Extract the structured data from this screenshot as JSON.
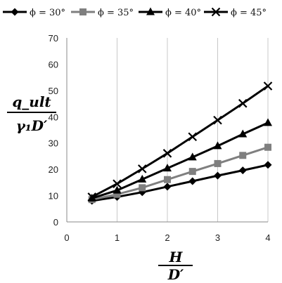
{
  "chart_data": {
    "type": "line",
    "ylabel_numerator": "q_ult",
    "ylabel_denominator": "γ₁D′",
    "xlabel_numerator": "H",
    "xlabel_denominator": "D′",
    "xlim": [
      0,
      4
    ],
    "ylim": [
      0,
      70
    ],
    "x_ticks": [
      "0",
      "1",
      "2",
      "3",
      "4"
    ],
    "y_ticks": [
      "0",
      "10",
      "20",
      "30",
      "40",
      "50",
      "60",
      "70"
    ],
    "grid": "vertical gridlines",
    "legend_position": "top",
    "x": [
      0.5,
      1,
      1.5,
      2,
      2.5,
      3,
      3.5,
      4
    ],
    "series": [
      {
        "name": "ϕ = 30°",
        "marker": "diamond",
        "color": "#000000",
        "values": [
          8,
          9.5,
          11.3,
          13.4,
          15.5,
          17.6,
          19.6,
          21.7
        ]
      },
      {
        "name": "ϕ = 35°",
        "marker": "square",
        "color": "#7f7f7f",
        "values": [
          8.5,
          10.5,
          13,
          16.1,
          19.2,
          22.2,
          25.3,
          28.4
        ]
      },
      {
        "name": "ϕ = 40°",
        "marker": "triangle",
        "color": "#000000",
        "values": [
          9,
          12,
          16.2,
          20.4,
          24.6,
          28.9,
          33.4,
          37.7
        ]
      },
      {
        "name": "ϕ = 45°",
        "marker": "x",
        "color": "#000000",
        "values": [
          9.5,
          14.5,
          20.2,
          26.1,
          32.4,
          38.7,
          45.1,
          51.7
        ]
      }
    ]
  }
}
